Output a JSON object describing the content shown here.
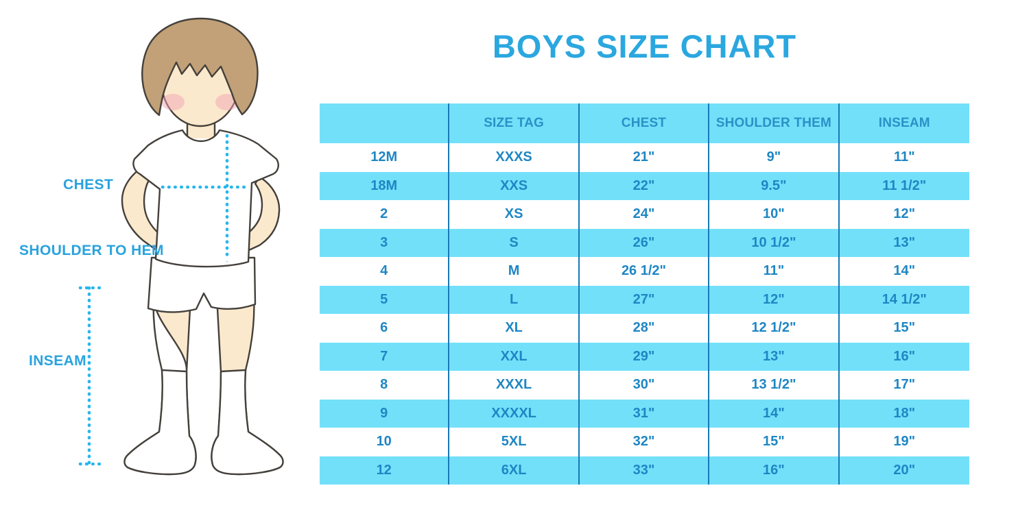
{
  "page": {
    "title": "BOYS SIZE CHART"
  },
  "colors": {
    "title_blue": "#2BA7E0",
    "label_blue": "#29A3DE",
    "band_cyan": "#73E0FA",
    "header_text": "#2A91C6",
    "cell_text": "#1E86C3",
    "divider_blue": "#1878B4",
    "dotted_line": "#29B6EC",
    "skin": "#FBE9CD",
    "hair": "#C2A178",
    "cheek": "#F2A3B3",
    "outline": "#44403B"
  },
  "figure": {
    "labels": {
      "chest": "CHEST",
      "shoulder_to_hem": "SHOULDER TO HEM",
      "inseam": "INSEAM"
    }
  },
  "table": {
    "headers": [
      "",
      "SIZE TAG",
      "CHEST",
      "SHOULDER THEM",
      "INSEAM"
    ],
    "rows": [
      [
        "12M",
        "XXXS",
        "21\"",
        "9\"",
        "11\""
      ],
      [
        "18M",
        "XXS",
        "22\"",
        "9.5\"",
        "11 1/2\""
      ],
      [
        "2",
        "XS",
        "24\"",
        "10\"",
        "12\""
      ],
      [
        "3",
        "S",
        "26\"",
        "10 1/2\"",
        "13\""
      ],
      [
        "4",
        "M",
        "26 1/2\"",
        "11\"",
        "14\""
      ],
      [
        "5",
        "L",
        "27\"",
        "12\"",
        "14 1/2\""
      ],
      [
        "6",
        "XL",
        "28\"",
        "12 1/2\"",
        "15\""
      ],
      [
        "7",
        "XXL",
        "29\"",
        "13\"",
        "16\""
      ],
      [
        "8",
        "XXXL",
        "30\"",
        "13 1/2\"",
        "17\""
      ],
      [
        "9",
        "XXXXL",
        "31\"",
        "14\"",
        "18\""
      ],
      [
        "10",
        "5XL",
        "32\"",
        "15\"",
        "19\""
      ],
      [
        "12",
        "6XL",
        "33\"",
        "16\"",
        "20\""
      ]
    ]
  }
}
